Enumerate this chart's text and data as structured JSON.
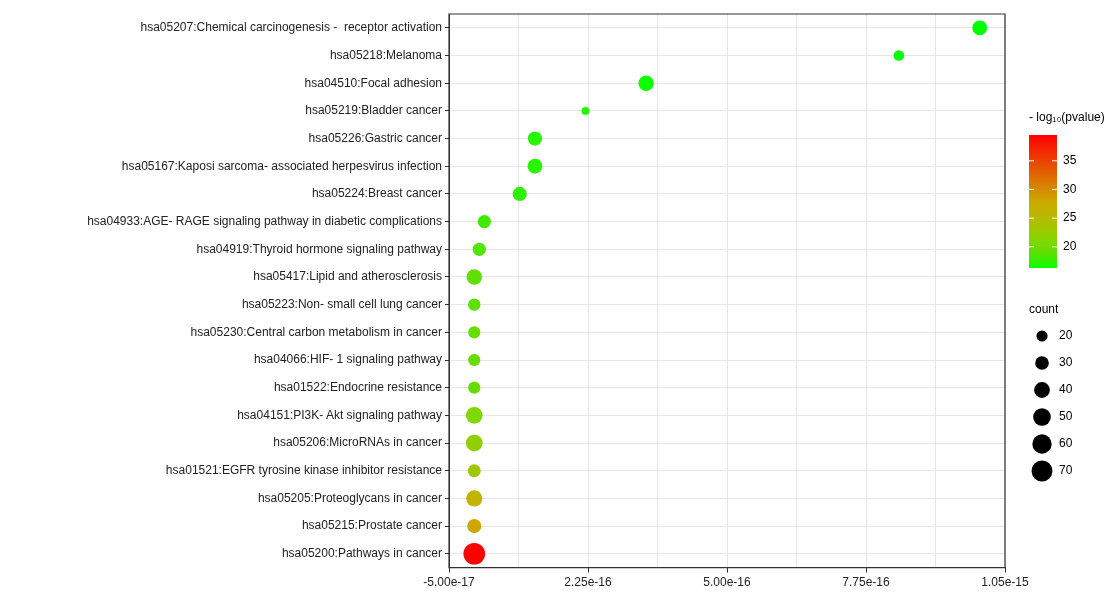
{
  "chart_data": {
    "type": "bubble",
    "orientation": "horizontal",
    "categories": [
      "hsa05207:Chemical carcinogenesis -  receptor activation",
      "hsa05218:Melanoma",
      "hsa04510:Focal adhesion",
      "hsa05219:Bladder cancer",
      "hsa05226:Gastric cancer",
      "hsa05167:Kaposi sarcoma- associated herpesvirus infection",
      "hsa05224:Breast cancer",
      "hsa04933:AGE- RAGE signaling pathway in diabetic complications",
      "hsa04919:Thyroid hormone signaling pathway",
      "hsa05417:Lipid and atherosclerosis",
      "hsa05223:Non- small cell lung cancer",
      "hsa05230:Central carbon metabolism in cancer",
      "hsa04066:HIF- 1 signaling pathway",
      "hsa01522:Endocrine resistance",
      "hsa04151:PI3K- Akt signaling pathway",
      "hsa05206:MicroRNAs in cancer",
      "hsa01521:EGFR tyrosine kinase inhibitor resistance",
      "hsa05205:Proteoglycans in cancer",
      "hsa05215:Prostate cancer",
      "hsa05200:Pathways in cancer"
    ],
    "values": [
      1e-15,
      8.4e-16,
      3.4e-16,
      2.2e-16,
      1.2e-16,
      1.2e-16,
      9e-17,
      2e-17,
      1e-17,
      0,
      0,
      0,
      0,
      0,
      0,
      0,
      0,
      0,
      0,
      0
    ],
    "sizes": [
      35,
      18,
      38,
      10,
      32,
      35,
      32,
      28,
      28,
      38,
      25,
      24,
      24,
      24,
      45,
      45,
      27,
      42,
      32,
      75
    ],
    "size_legend": [
      20,
      30,
      40,
      50,
      60,
      70
    ],
    "legend_title": "count",
    "cvalues": [
      16.3,
      16.3,
      16.5,
      17,
      17,
      17,
      17.5,
      18,
      18.5,
      19,
      19,
      19.5,
      19.5,
      19.5,
      21,
      22,
      23,
      26,
      28,
      39.5
    ],
    "colors": [
      "#00ff00",
      "#00ff00",
      "#10ff00",
      "#20f800",
      "#28f500",
      "#28f500",
      "#30f000",
      "#40ea00",
      "#50e600",
      "#60e000",
      "#60e000",
      "#66de00",
      "#68dc00",
      "#68dc00",
      "#80d800",
      "#90d000",
      "#a0c800",
      "#c0b400",
      "#cca800",
      "#ff0000"
    ],
    "clabel": "- log₁₀(pvalue)",
    "clim": [
      16.3,
      39.5
    ],
    "cticks": [
      20,
      25,
      30,
      35
    ],
    "xlim": [
      -5e-17,
      1.05e-15
    ],
    "xticks": [
      {
        "value": -5e-17,
        "label": "-5.00e-17"
      },
      {
        "value": 8.75e-17,
        "label": null
      },
      {
        "value": 2.25e-16,
        "label": "2.25e-16"
      },
      {
        "value": 3.625e-16,
        "label": null
      },
      {
        "value": 5e-16,
        "label": "5.00e-16"
      },
      {
        "value": 6.375e-16,
        "label": null
      },
      {
        "value": 7.75e-16,
        "label": "7.75e-16"
      },
      {
        "value": 9.125e-16,
        "label": null
      },
      {
        "value": 1.05e-15,
        "label": "1.05e-15"
      }
    ],
    "grid": true,
    "marker": "circle"
  }
}
